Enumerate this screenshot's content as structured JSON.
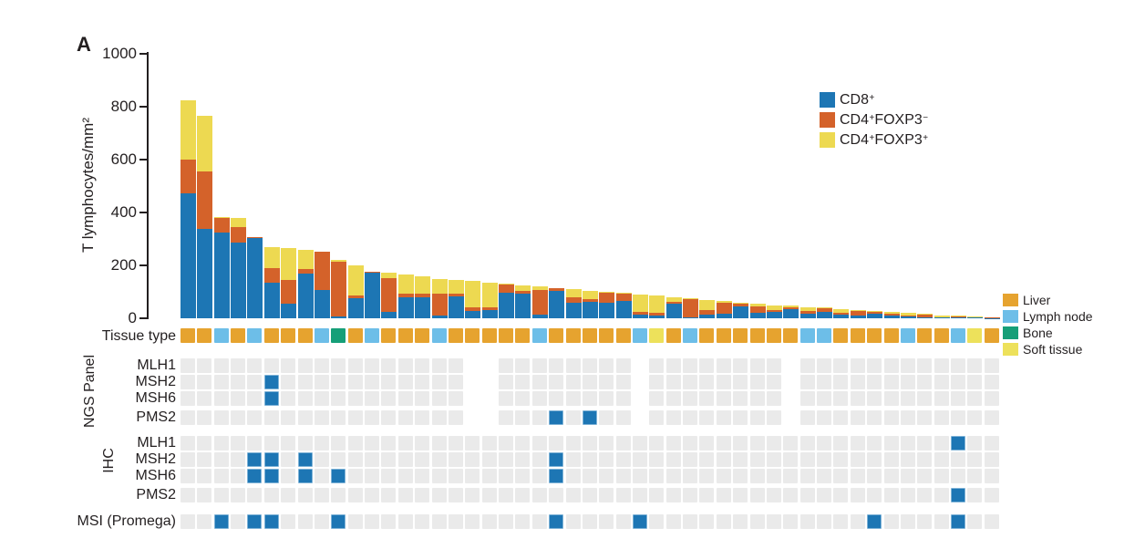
{
  "panel_label": "A",
  "chart_data": {
    "type": "bar",
    "stacked": true,
    "ylabel": "T lymphocytes/mm²",
    "ylim": [
      0,
      1000
    ],
    "yticks": [
      0,
      200,
      400,
      600,
      800,
      1000
    ],
    "grid": false,
    "legend_position": "top-right",
    "n_samples": 49,
    "series": [
      {
        "name": "CD8+",
        "color": "#1D76B4",
        "values": [
          472,
          338,
          324,
          286,
          305,
          135,
          55,
          170,
          108,
          8,
          75,
          172,
          25,
          78,
          80,
          10,
          82,
          28,
          32,
          95,
          93,
          12,
          105,
          58,
          62,
          60,
          65,
          14,
          12,
          55,
          4,
          14,
          17,
          44,
          22,
          24,
          34,
          18,
          25,
          15,
          10,
          18,
          12,
          8,
          5,
          3,
          4,
          2,
          1
        ]
      },
      {
        "name": "CD4+FOXP3-",
        "color": "#D4622A",
        "values": [
          128,
          217,
          56,
          58,
          2,
          55,
          90,
          15,
          144,
          207,
          10,
          5,
          125,
          14,
          12,
          82,
          10,
          14,
          8,
          32,
          12,
          96,
          8,
          22,
          10,
          37,
          28,
          10,
          8,
          7,
          70,
          18,
          43,
          11,
          24,
          8,
          9,
          10,
          12,
          6,
          18,
          6,
          4,
          4,
          8,
          2,
          3,
          2,
          1
        ]
      },
      {
        "name": "CD4+FOXP3+",
        "color": "#EDD951",
        "values": [
          224,
          211,
          3,
          37,
          0,
          80,
          120,
          75,
          0,
          7,
          115,
          0,
          22,
          73,
          66,
          58,
          53,
          98,
          95,
          3,
          20,
          12,
          2,
          30,
          33,
          3,
          2,
          66,
          65,
          18,
          1,
          38,
          5,
          5,
          9,
          18,
          5,
          15,
          3,
          15,
          4,
          4,
          8,
          8,
          3,
          7,
          2,
          2,
          1
        ]
      }
    ]
  },
  "legend": {
    "items": [
      {
        "color": "#1D76B4",
        "parts": [
          [
            "CD8",
            0
          ],
          [
            "+",
            1
          ]
        ]
      },
      {
        "color": "#D4622A",
        "parts": [
          [
            "CD4",
            0
          ],
          [
            "+",
            1
          ],
          [
            "FOXP3",
            0
          ],
          [
            "−",
            1
          ]
        ]
      },
      {
        "color": "#EDD951",
        "parts": [
          [
            "CD4",
            0
          ],
          [
            "+",
            1
          ],
          [
            "FOXP3",
            0
          ],
          [
            "+",
            1
          ]
        ]
      }
    ]
  },
  "tissue": {
    "label": "Tissue type",
    "colors": {
      "L": "#E6A32F",
      "N": "#6DBEE8",
      "B": "#169F78",
      "S": "#EDE15B"
    },
    "sequence": "LLNLNLLLNBLNLLLNLLLLLNLLLLLNSLNLLLLLLNNLLLLNLLNSL",
    "legend": [
      {
        "label": "Liver",
        "color": "#E6A32F"
      },
      {
        "label": "Lymph node",
        "color": "#6DBEE8"
      },
      {
        "label": "Bone",
        "color": "#169F78"
      },
      {
        "label": "Soft tissue",
        "color": "#EDE15B"
      }
    ]
  },
  "grids": {
    "cell_states": {
      "g": "tested-negative",
      "b": "positive",
      ".": "not-performed"
    },
    "sections": [
      {
        "section": "NGS Panel",
        "rows": [
          {
            "label": "MLH1",
            "cells": "ggggggggggggggggg..gggggggg.gggggggg.gggggggggggg"
          },
          {
            "label": "MSH2",
            "cells": "gggggbggggggggggg..gggggggg.gggggggg.gggggggggggg"
          },
          {
            "label": "MSH6",
            "cells": "gggggbggggggggggg..gggggggg.gggggggg.gggggggggggg"
          },
          {
            "label": "PMS2",
            "cells": "ggggggggggggggggg..gggbgbgg.gggggggg.gggggggggggg"
          }
        ]
      },
      {
        "section": "IHC",
        "rows": [
          {
            "label": "MLH1",
            "cells": "ggggggggggggggggggggggggggggggggggggggggggggggbgg"
          },
          {
            "label": "MSH2",
            "cells": "ggggbbgbggggggggggggggbgggggggggggggggggggggggggg"
          },
          {
            "label": "MSH6",
            "cells": "ggggbbgbgbggggggggggggbgggggggggggggggggggggggggg"
          },
          {
            "label": "PMS2",
            "cells": "ggggggggggggggggggggggggggggggggggggggggggggggbgg"
          }
        ]
      },
      {
        "section": "",
        "rows": [
          {
            "label": "MSI (Promega)",
            "cells": "ggbgbbgggbggggggggggggbggggbgggggggggggggbggggbgg"
          }
        ]
      }
    ]
  }
}
